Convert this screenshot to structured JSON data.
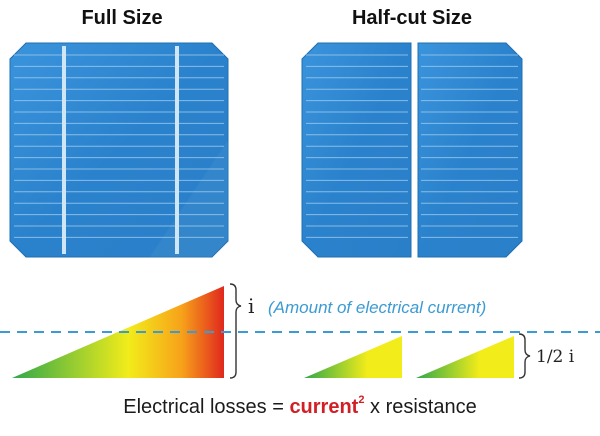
{
  "labels": {
    "full_size": "Full Size",
    "half_cut_size": "Half-cut Size",
    "current_i": "i",
    "amount_note": "(Amount of electrical current)",
    "half_current": "1/2 i"
  },
  "formula": {
    "prefix": "Electrical losses = ",
    "highlight": "current",
    "exponent": "2",
    "suffix": " x resistance"
  },
  "colors": {
    "cell_blue": "#2d86cf",
    "cell_edge": "#1f6fb2",
    "busbar": "#cfe6f7",
    "dashed_line": "#3b9bd3",
    "gradient_start": "#2fa84a",
    "gradient_mid": "#f2ec1a",
    "gradient_end": "#e0281e",
    "highlight_red": "#d21f26"
  }
}
